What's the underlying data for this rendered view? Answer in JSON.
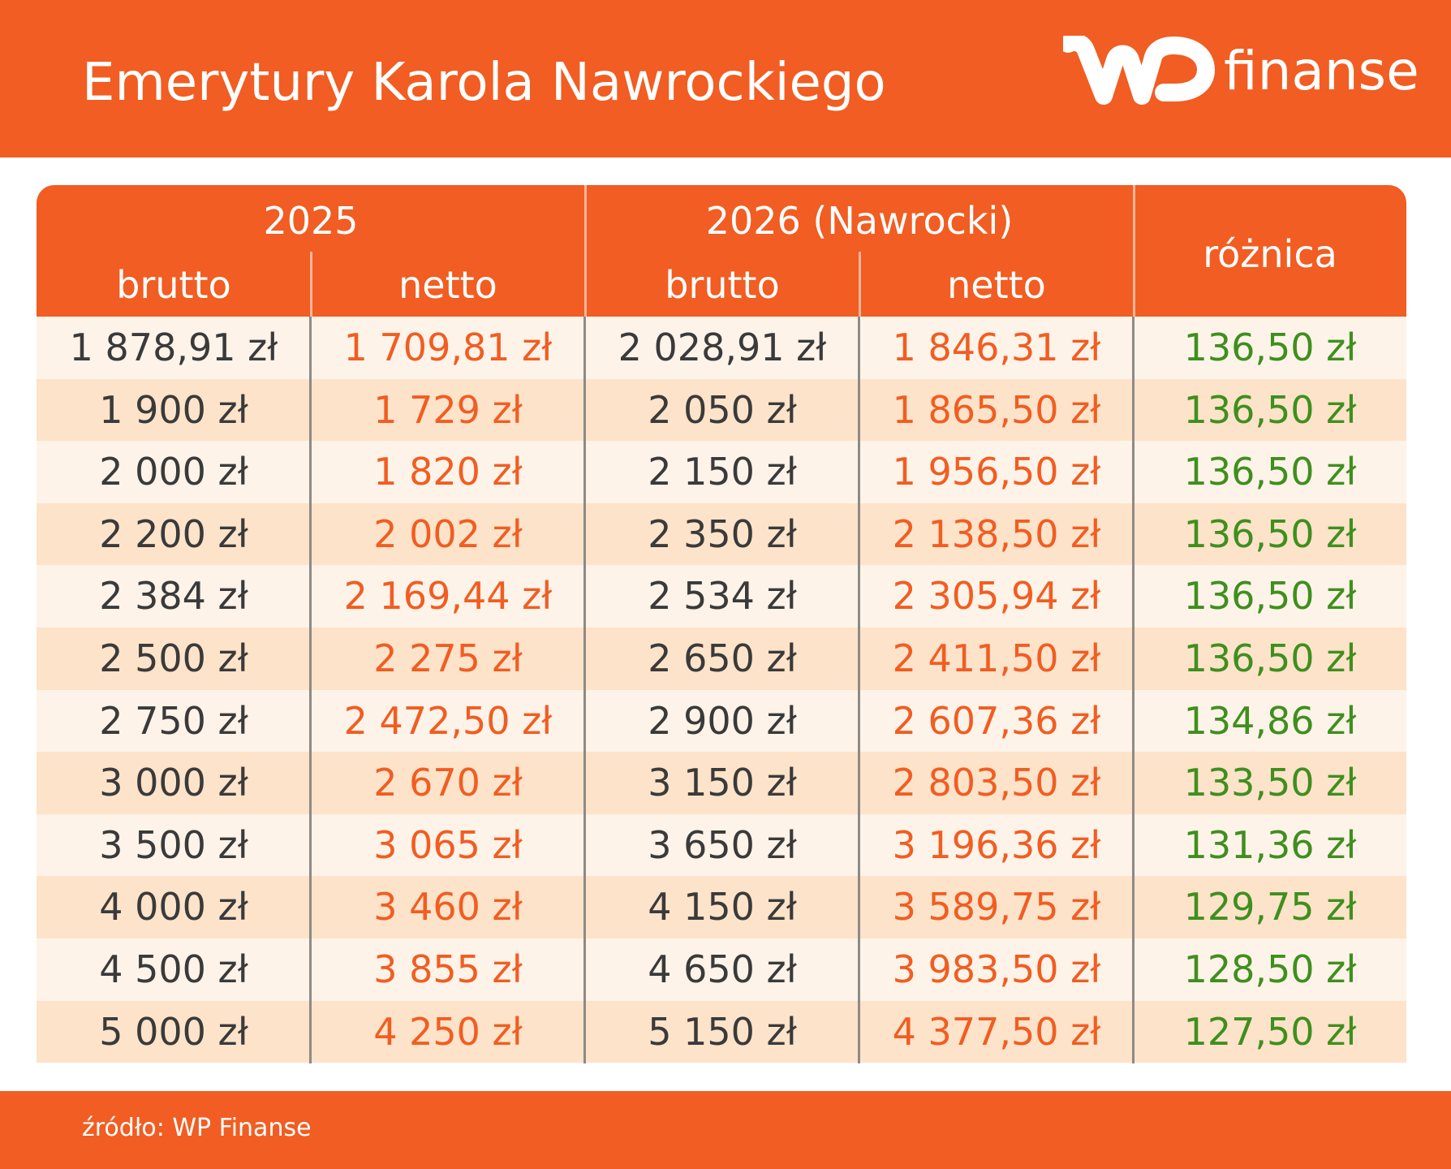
{
  "title": "Emerytury Karola Nawrockiego",
  "logo": {
    "mark": "WP",
    "wordmark": "finanse",
    "icon": "wp-logo-icon"
  },
  "colors": {
    "brand": "#F15D22",
    "row_light": "#FEF3E8",
    "row_dark": "#FDE3C9",
    "brutto_text": "#3A3A3A",
    "netto_text": "#F15D22",
    "diff_text": "#3F8F1E"
  },
  "table": {
    "groups": [
      "2025",
      "2026 (Nawrocki)"
    ],
    "subheaders": [
      "brutto",
      "netto",
      "brutto",
      "netto"
    ],
    "diff_header": "różnica",
    "rows": [
      [
        "1 878,91 zł",
        "1 709,81 zł",
        "2 028,91 zł",
        "1 846,31 zł",
        "136,50 zł"
      ],
      [
        "1 900 zł",
        "1 729 zł",
        "2 050 zł",
        "1 865,50 zł",
        "136,50 zł"
      ],
      [
        "2 000 zł",
        "1 820 zł",
        "2 150 zł",
        "1 956,50 zł",
        "136,50 zł"
      ],
      [
        "2 200 zł",
        "2 002 zł",
        "2 350 zł",
        "2 138,50 zł",
        "136,50 zł"
      ],
      [
        "2 384 zł",
        "2 169,44 zł",
        "2 534 zł",
        "2 305,94 zł",
        "136,50 zł"
      ],
      [
        "2 500 zł",
        "2 275 zł",
        "2 650 zł",
        "2 411,50 zł",
        "136,50 zł"
      ],
      [
        "2 750 zł",
        "2 472,50 zł",
        "2 900 zł",
        "2 607,36 zł",
        "134,86 zł"
      ],
      [
        "3 000 zł",
        "2 670 zł",
        "3 150 zł",
        "2 803,50 zł",
        "133,50 zł"
      ],
      [
        "3 500 zł",
        "3 065 zł",
        "3 650 zł",
        "3 196,36 zł",
        "131,36 zł"
      ],
      [
        "4 000 zł",
        "3 460 zł",
        "4 150 zł",
        "3 589,75 zł",
        "129,75 zł"
      ],
      [
        "4 500 zł",
        "3 855 zł",
        "4 650 zł",
        "3 983,50 zł",
        "128,50 zł"
      ],
      [
        "5 000 zł",
        "4 250 zł",
        "5 150 zł",
        "4 377,50 zł",
        "127,50 zł"
      ]
    ]
  },
  "footer": {
    "source": "źródło: WP Finanse"
  }
}
